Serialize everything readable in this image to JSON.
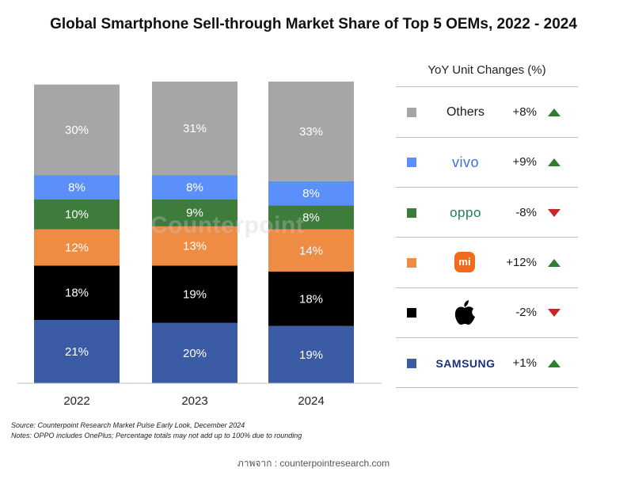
{
  "title": "Global Smartphone Sell-through Market Share of Top 5 OEMs, 2022 - 2024",
  "watermark": "Counterpoint",
  "chart_data": {
    "type": "bar",
    "stacked": true,
    "categories": [
      "2022",
      "2023",
      "2024"
    ],
    "ylim": [
      0,
      100
    ],
    "series": [
      {
        "key": "samsung",
        "color": "#3b5ba5",
        "label_color": "#ffffff",
        "values": [
          21,
          20,
          19
        ],
        "labels": [
          "21%",
          "20%",
          "19%"
        ]
      },
      {
        "key": "apple",
        "color": "#000000",
        "label_color": "#ffffff",
        "values": [
          18,
          19,
          18
        ],
        "labels": [
          "18%",
          "19%",
          "18%"
        ]
      },
      {
        "key": "xiaomi",
        "color": "#ef8c44",
        "label_color": "#ffffff",
        "values": [
          12,
          13,
          14
        ],
        "labels": [
          "12%",
          "13%",
          "14%"
        ]
      },
      {
        "key": "oppo",
        "color": "#3e7c3c",
        "label_color": "#ffffff",
        "values": [
          10,
          9,
          8
        ],
        "labels": [
          "10%",
          "9%",
          "8%"
        ]
      },
      {
        "key": "vivo",
        "color": "#5b8ff9",
        "label_color": "#ffffff",
        "values": [
          8,
          8,
          8
        ],
        "labels": [
          "8%",
          "8%",
          "8%"
        ]
      },
      {
        "key": "others",
        "color": "#a6a6a6",
        "label_color": "#ffffff",
        "values": [
          30,
          31,
          33
        ],
        "labels": [
          "30%",
          "31%",
          "33%"
        ]
      }
    ]
  },
  "legend": {
    "title": "YoY Unit Changes (%)",
    "items": [
      {
        "brand": "Others",
        "style": "text",
        "color": "#a6a6a6",
        "change": "+8%",
        "direction": "up"
      },
      {
        "brand": "vivo",
        "style": "vivo",
        "color": "#5b8ff9",
        "change": "+9%",
        "direction": "up"
      },
      {
        "brand": "oppo",
        "style": "oppo",
        "color": "#3e7c3c",
        "change": "-8%",
        "direction": "down"
      },
      {
        "brand": "mi",
        "style": "mi",
        "color": "#ef8c44",
        "change": "+12%",
        "direction": "up"
      },
      {
        "brand": "",
        "style": "apple",
        "color": "#000000",
        "change": "-2%",
        "direction": "down"
      },
      {
        "brand": "SAMSUNG",
        "style": "samsung",
        "color": "#3b5ba5",
        "change": "+1%",
        "direction": "up"
      }
    ]
  },
  "footer": {
    "source": "Source: Counterpoint Research Market Pulse Early Look, December 2024",
    "notes": "Notes: OPPO includes OnePlus; Percentage totals may not add up to 100% due to rounding",
    "credit": "ภาพจาก : counterpointresearch.com"
  }
}
